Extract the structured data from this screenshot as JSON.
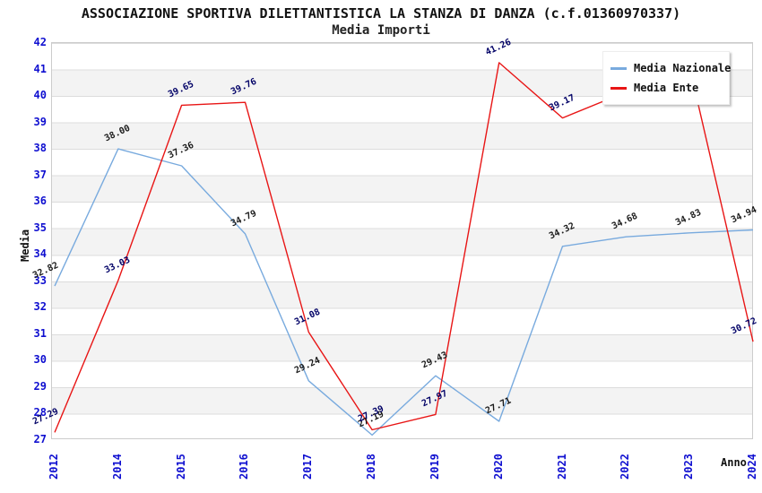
{
  "chart_data": {
    "type": "line",
    "title": "ASSOCIAZIONE SPORTIVA DILETTANTISTICA LA STANZA DI DANZA (c.f.01360970337)",
    "subtitle": "Media Importi",
    "xlabel": "Anno",
    "ylabel": "Media",
    "ylim": [
      27,
      42
    ],
    "y_ticks": [
      42,
      41,
      40,
      39,
      38,
      37,
      36,
      35,
      34,
      33,
      32,
      31,
      30,
      29,
      28,
      27
    ],
    "categories": [
      "2012",
      "2014",
      "2015",
      "2016",
      "2017",
      "2018",
      "2019",
      "2020",
      "2021",
      "2022",
      "2023",
      "2024"
    ],
    "grid": "horizontal gridlines every 1 unit with alternating white/grey bands",
    "legend_position": "top-right",
    "series": [
      {
        "name": "Media Nazionale",
        "color": "#78aade",
        "label_color": "#1a1a1a",
        "values": [
          32.82,
          38.0,
          37.36,
          34.79,
          29.24,
          27.19,
          29.43,
          27.71,
          34.32,
          34.68,
          34.83,
          34.94
        ],
        "hidden_label_indices": []
      },
      {
        "name": "Media Ente",
        "color": "#e81515",
        "label_color": "#000066",
        "values": [
          27.29,
          33.03,
          39.65,
          39.76,
          31.08,
          27.39,
          27.97,
          41.26,
          39.17,
          40.15,
          41.1,
          30.72
        ],
        "estimated_indices": [
          9,
          10
        ],
        "estimated_note": "2022 and 2023 points pass behind the legend box; values estimated from line path, labels not visible",
        "hidden_label_indices": [
          9,
          10
        ]
      }
    ],
    "colors": {
      "tick_label": "#0f0fd0",
      "grid_line": "#dcdcdc",
      "band_fill": "#f3f3f3",
      "plot_border": "#cccccc"
    }
  }
}
